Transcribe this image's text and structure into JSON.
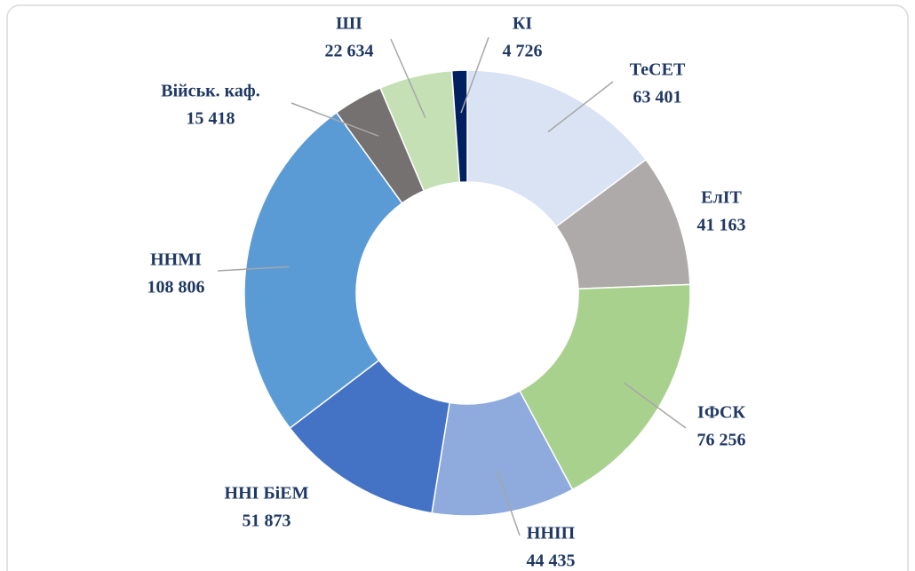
{
  "chart_data": {
    "type": "pie",
    "donut": true,
    "categories": [
      "ТеСЕТ",
      "ЕлІТ",
      "ІФСК",
      "ННІП",
      "ННІ БіЕМ",
      "ННМІ",
      "Військ. каф.",
      "ШІ",
      "КІ"
    ],
    "values": [
      63401,
      41163,
      76256,
      44435,
      51873,
      108806,
      15418,
      22634,
      4726
    ],
    "value_labels": [
      "63 401",
      "41 163",
      "76 256",
      "44 435",
      "51 873",
      "108 806",
      "15 418",
      "22 634",
      "4 726"
    ],
    "colors": [
      "#dae3f3",
      "#aeaaaa",
      "#a9d18e",
      "#8faadc",
      "#4472c4",
      "#5b9bd5",
      "#767171",
      "#c5e0b4",
      "#002060"
    ]
  }
}
